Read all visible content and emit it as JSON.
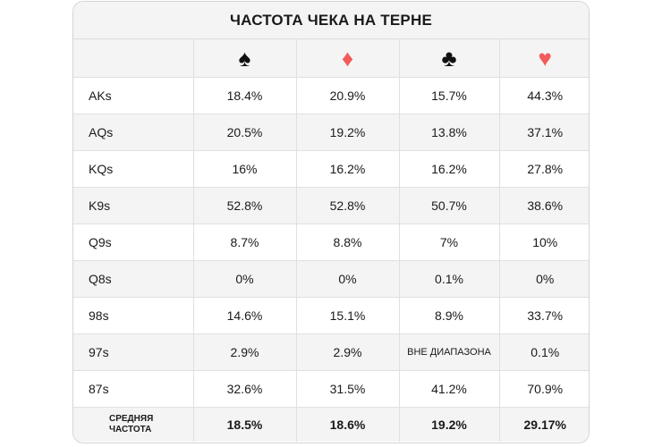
{
  "title": "ЧАСТОТА ЧЕКА НА ТЕРНЕ",
  "columns": [
    {
      "icon": "spade-icon",
      "glyph": "♠",
      "color": "#111111"
    },
    {
      "icon": "diamond-icon",
      "glyph": "♦",
      "color": "#f25b5b"
    },
    {
      "icon": "club-icon",
      "glyph": "♣",
      "color": "#111111"
    },
    {
      "icon": "heart-icon",
      "glyph": "♥",
      "color": "#f25b5b"
    }
  ],
  "rows": [
    {
      "hand": "AKs",
      "values": [
        "18.4%",
        "20.9%",
        "15.7%",
        "44.3%"
      ]
    },
    {
      "hand": "AQs",
      "values": [
        "20.5%",
        "19.2%",
        "13.8%",
        "37.1%"
      ]
    },
    {
      "hand": "KQs",
      "values": [
        "16%",
        "16.2%",
        "16.2%",
        "27.8%"
      ]
    },
    {
      "hand": "K9s",
      "values": [
        "52.8%",
        "52.8%",
        "50.7%",
        "38.6%"
      ]
    },
    {
      "hand": "Q9s",
      "values": [
        "8.7%",
        "8.8%",
        "7%",
        "10%"
      ]
    },
    {
      "hand": "Q8s",
      "values": [
        "0%",
        "0%",
        "0.1%",
        "0%"
      ]
    },
    {
      "hand": "98s",
      "values": [
        "14.6%",
        "15.1%",
        "8.9%",
        "33.7%"
      ]
    },
    {
      "hand": "97s",
      "values": [
        "2.9%",
        "2.9%",
        "ВНЕ ДИАПАЗОНА",
        "0.1%"
      ]
    },
    {
      "hand": "87s",
      "values": [
        "32.6%",
        "31.5%",
        "41.2%",
        "70.9%"
      ]
    }
  ],
  "summary": {
    "label_line1": "СРЕДНЯЯ",
    "label_line2": "ЧАСТОТА",
    "values": [
      "18.5%",
      "18.6%",
      "19.2%",
      "29.17%"
    ]
  }
}
